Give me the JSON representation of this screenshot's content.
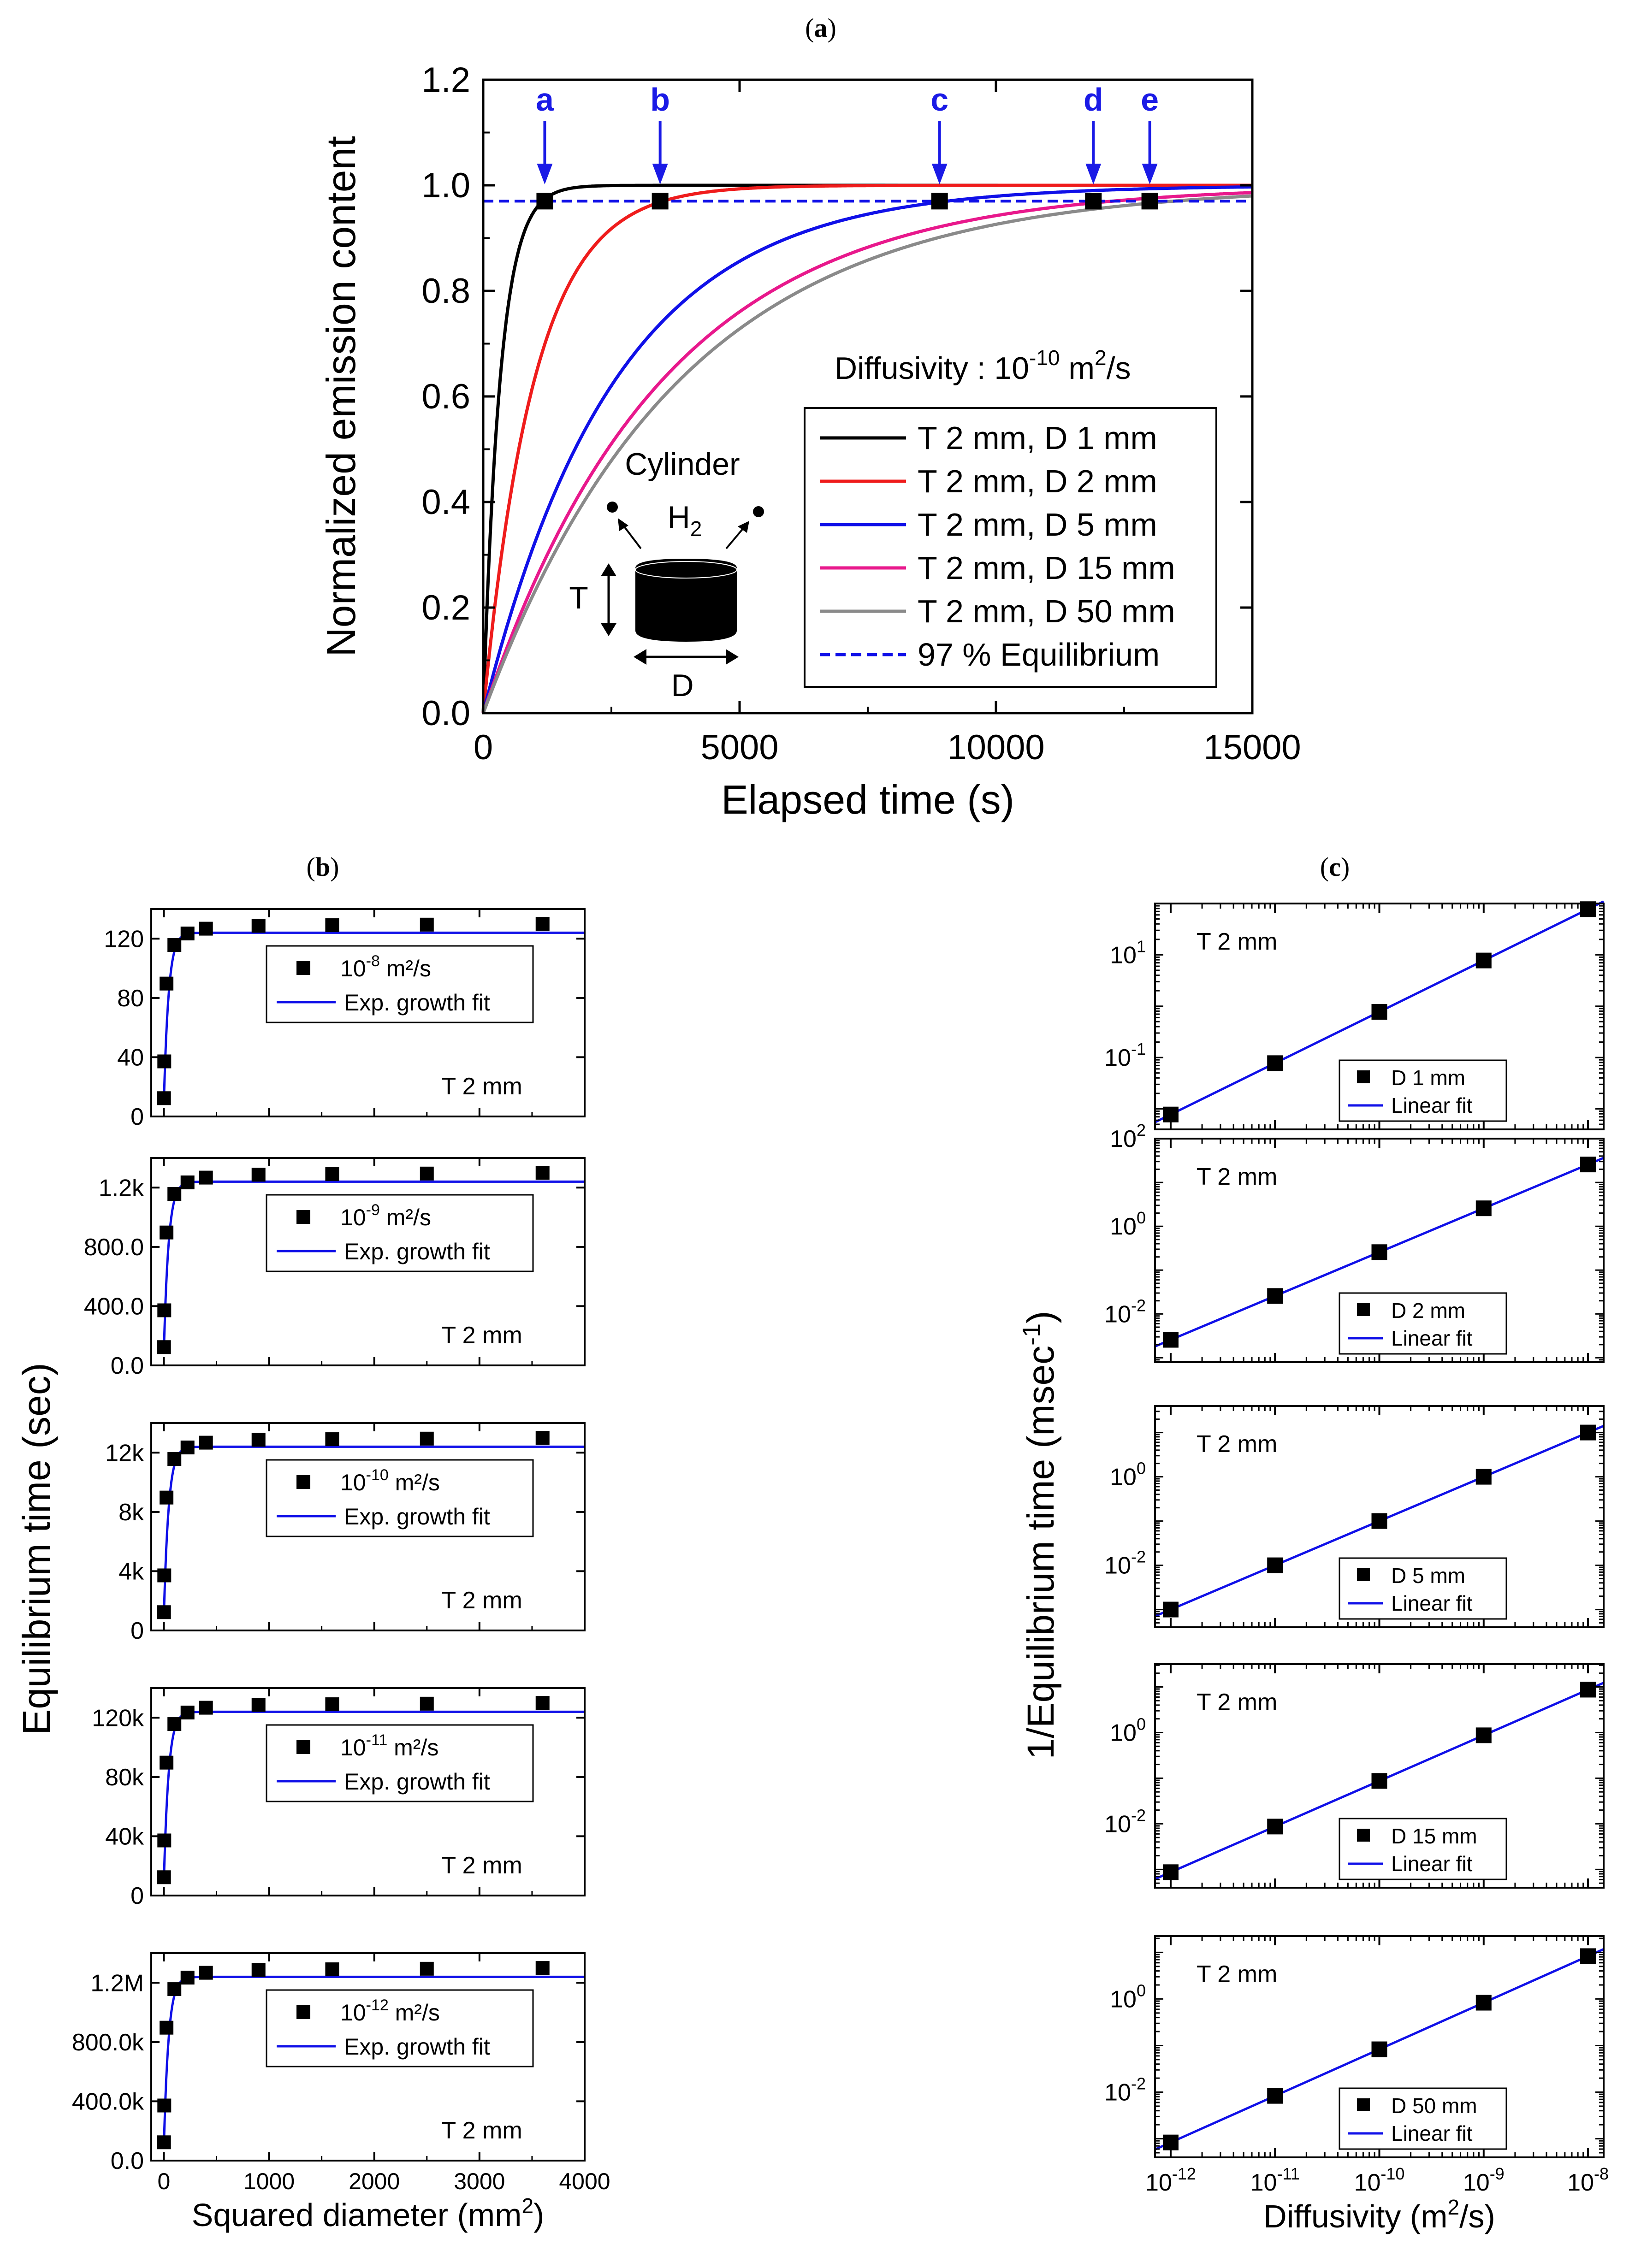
{
  "colors": {
    "black": "#000000",
    "red": "#ef1c1c",
    "blue": "#1010e8",
    "magenta": "#e8188c",
    "gray": "#8a8a8a",
    "annot_blue": "#1a1ae6"
  },
  "chart_data": [
    {
      "id": "a",
      "panel_label": "a",
      "type": "line",
      "xlabel": "Elapsed time (s)",
      "ylabel": "Normalized emission content",
      "xlim": [
        0,
        15000
      ],
      "ylim": [
        0,
        1.2
      ],
      "xticks": [
        0,
        5000,
        10000,
        15000
      ],
      "yticks": [
        0.0,
        0.2,
        0.4,
        0.6,
        0.8,
        1.0,
        1.2
      ],
      "ytick_labels": [
        "0.0",
        "0.2",
        "0.4",
        "0.6",
        "0.8",
        "1.0",
        "1.2"
      ],
      "annotation_diffusivity": {
        "base": "Diffusivity : 10",
        "exp": "-10",
        "tail": " m",
        "unit_exp": "2",
        "end": "/s"
      },
      "inset": {
        "title": "Cylinder",
        "gas": "H",
        "gas_sub": "2",
        "thickness_label": "T",
        "diameter_label": "D"
      },
      "series": [
        {
          "name": "T 2 mm, D 1 mm",
          "color_key": "black",
          "tau": 330
        },
        {
          "name": "T 2 mm, D 2 mm",
          "color_key": "red",
          "tau": 1000
        },
        {
          "name": "T 2 mm, D 5 mm",
          "color_key": "blue",
          "tau": 2580
        },
        {
          "name": "T 2 mm, D 15 mm",
          "color_key": "magenta",
          "tau": 3500
        },
        {
          "name": "T 2 mm, D 50 mm",
          "color_key": "gray",
          "tau": 3840
        }
      ],
      "reference_line": {
        "name": "97 % Equilibrium",
        "y": 0.97
      },
      "markers": [
        {
          "label": "a",
          "x": 1200,
          "y": 0.97
        },
        {
          "label": "b",
          "x": 3450,
          "y": 0.97
        },
        {
          "label": "c",
          "x": 8900,
          "y": 0.97
        },
        {
          "label": "d",
          "x": 11900,
          "y": 0.97
        },
        {
          "label": "e",
          "x": 13000,
          "y": 0.97
        }
      ]
    },
    {
      "id": "b",
      "panel_label": "b",
      "type": "scatter",
      "xlabel_base": "Squared diameter (mm",
      "xlabel_sup": "2",
      "xlabel_end": ")",
      "ylabel": "Equilibrium time (sec)",
      "xlim": [
        -120,
        4000
      ],
      "xticks": [
        0,
        1000,
        2000,
        3000,
        4000
      ],
      "x": [
        1,
        4,
        25,
        100,
        225,
        400,
        900,
        1600,
        2500,
        3600
      ],
      "shape": [
        0.095,
        0.286,
        0.69,
        0.89,
        0.95,
        0.975,
        0.99,
        0.993,
        0.996,
        1.0
      ],
      "fit_label": "Exp. growth fit",
      "thickness_label": "T 2 mm",
      "subplots": [
        {
          "exp": "-8",
          "unit": " m²/s",
          "ymax": 130,
          "ylim": [
            0,
            140
          ],
          "plateau": 124,
          "yticks": [
            0,
            40,
            80,
            120
          ],
          "ytick_labels": [
            "0",
            "40",
            "80",
            "120"
          ]
        },
        {
          "exp": "-9",
          "unit": " m²/s",
          "ymax": 1300,
          "ylim": [
            0,
            1400
          ],
          "plateau": 1240,
          "yticks": [
            0,
            400,
            800,
            1200
          ],
          "ytick_labels": [
            "0.0",
            "400.0",
            "800.0",
            "1.2k"
          ]
        },
        {
          "exp": "-10",
          "unit": " m²/s",
          "ymax": 13000,
          "ylim": [
            0,
            14000
          ],
          "plateau": 12400,
          "yticks": [
            0,
            4000,
            8000,
            12000
          ],
          "ytick_labels": [
            "0",
            "4k",
            "8k",
            "12k"
          ]
        },
        {
          "exp": "-11",
          "unit": " m²/s",
          "ymax": 130000,
          "ylim": [
            0,
            140000
          ],
          "plateau": 124000,
          "yticks": [
            0,
            40000,
            80000,
            120000
          ],
          "ytick_labels": [
            "0",
            "40k",
            "80k",
            "120k"
          ]
        },
        {
          "exp": "-12",
          "unit": " m²/s",
          "ymax": 1300000,
          "ylim": [
            0,
            1400000
          ],
          "plateau": 1240000,
          "yticks": [
            0,
            400000,
            800000,
            1200000
          ],
          "ytick_labels": [
            "0.0",
            "400.0k",
            "800.0k",
            "1.2M"
          ]
        }
      ]
    },
    {
      "id": "c",
      "panel_label": "c",
      "type": "scatter",
      "xscale": "log",
      "xlabel_base": "Diffusivity (m",
      "xlabel_sup": "2",
      "xlabel_end": "/s)",
      "ylabel_base": "1/Equilibrium time (msec",
      "ylabel_sup": "-1",
      "ylabel_end": ")",
      "x_log10": [
        -12,
        -11,
        -10,
        -9,
        -8
      ],
      "xlim_log10": [
        -12.15,
        -7.85
      ],
      "xtick_base": "10",
      "xtick_exps": [
        "-12",
        "-11",
        "-10",
        "-9",
        "-8"
      ],
      "fit_label": "Linear fit",
      "thickness_label": "T 2 mm",
      "subplots": [
        {
          "legend": "D 1 mm",
          "y_log10": [
            -2.11,
            -1.11,
            -0.11,
            0.89,
            1.89
          ],
          "ylim_log10": [
            -2.4,
            2.0
          ],
          "yticks_log10": [
            -1,
            1
          ],
          "ytick_exps": [
            "-1",
            "1"
          ]
        },
        {
          "legend": "D 2 mm",
          "y_log10": [
            -2.59,
            -1.59,
            -0.59,
            0.41,
            1.41
          ],
          "ylim_log10": [
            -3.1,
            2.0
          ],
          "yticks_log10": [
            -2,
            0,
            2
          ],
          "ytick_exps": [
            "-2",
            "0",
            "2"
          ]
        },
        {
          "legend": "D 5 mm",
          "y_log10": [
            -3.0,
            -2.0,
            -1.0,
            0.0,
            1.0
          ],
          "ylim_log10": [
            -3.4,
            1.6
          ],
          "yticks_log10": [
            -2,
            0
          ],
          "ytick_exps": [
            "-2",
            "0"
          ]
        },
        {
          "legend": "D 15 mm",
          "y_log10": [
            -3.06,
            -2.06,
            -1.06,
            -0.06,
            0.94
          ],
          "ylim_log10": [
            -3.4,
            1.5
          ],
          "yticks_log10": [
            -2,
            0
          ],
          "ytick_exps": [
            "-2",
            "0"
          ]
        },
        {
          "legend": "D 50 mm",
          "y_log10": [
            -3.08,
            -2.08,
            -1.08,
            -0.08,
            0.92
          ],
          "ylim_log10": [
            -3.4,
            1.35
          ],
          "yticks_log10": [
            -2,
            0
          ],
          "ytick_exps": [
            "-2",
            "0"
          ]
        }
      ]
    }
  ]
}
